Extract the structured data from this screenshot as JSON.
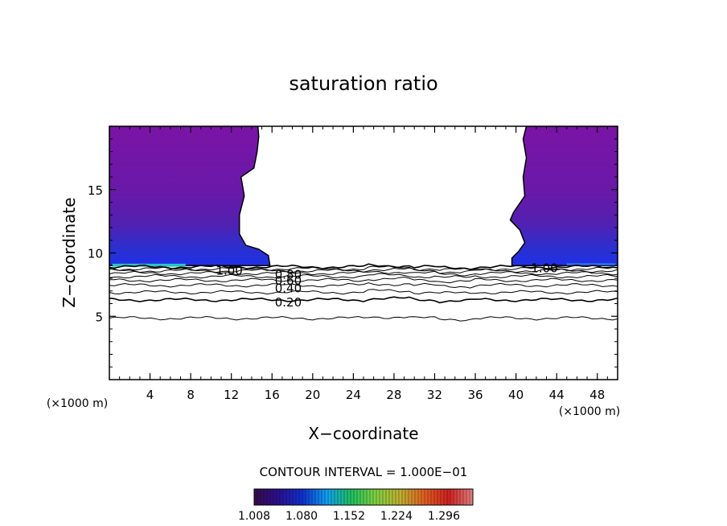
{
  "chart_data": {
    "type": "heatmap",
    "title": "saturation ratio",
    "xlabel": "X−coordinate",
    "ylabel": "Z−coordinate",
    "x_unit": "(×1000 m)",
    "y_unit": "(×1000 m)",
    "xlim": [
      0,
      50
    ],
    "ylim": [
      0,
      20
    ],
    "x_ticks": [
      4,
      8,
      12,
      16,
      20,
      24,
      28,
      32,
      36,
      40,
      44,
      48
    ],
    "y_ticks": [
      5,
      10,
      15
    ],
    "x_tick_labels": [
      "4",
      "8",
      "12",
      "16",
      "20",
      "24",
      "28",
      "32",
      "36",
      "40",
      "44",
      "48"
    ],
    "y_tick_labels": [
      "5",
      "10",
      "15"
    ],
    "contour_interval_text": "CONTOUR INTERVAL = 1.000E−01",
    "colorbar": {
      "min": 1.008,
      "max": 1.34,
      "tick_labels": [
        "1.008",
        "1.080",
        "1.152",
        "1.224",
        "1.296"
      ],
      "colors": [
        "#3a0a4a",
        "#2a1090",
        "#1030d0",
        "#10a0f0",
        "#20c060",
        "#80d040",
        "#c0b030",
        "#e06020",
        "#d02020",
        "#e08080"
      ]
    },
    "contour_levels": [
      {
        "value": 0.1,
        "z": 4.85
      },
      {
        "value": 0.2,
        "z": 6.3
      },
      {
        "value": 0.3,
        "z": 6.9
      },
      {
        "value": 0.4,
        "z": 7.45
      },
      {
        "value": 0.5,
        "z": 7.85
      },
      {
        "value": 0.6,
        "z": 8.15
      },
      {
        "value": 0.7,
        "z": 8.4
      },
      {
        "value": 0.8,
        "z": 8.6
      },
      {
        "value": 0.9,
        "z": 8.75
      },
      {
        "value": 1.0,
        "z": 8.9
      }
    ],
    "contour_labels": [
      {
        "text": "0.20",
        "x": 17.6,
        "z": 6.1
      },
      {
        "text": "0.40",
        "x": 17.6,
        "z": 7.2
      },
      {
        "text": "0.60",
        "x": 17.6,
        "z": 7.8
      },
      {
        "text": "0.80",
        "x": 17.6,
        "z": 8.3
      },
      {
        "text": "1.00",
        "x": 11.8,
        "z": 8.6
      },
      {
        "text": "1.00",
        "x": 42.8,
        "z": 8.8
      }
    ],
    "supersaturated_regions": [
      {
        "name": "left",
        "x_range": [
          0,
          15.8
        ],
        "z_range": [
          9.0,
          20
        ]
      },
      {
        "name": "right",
        "x_range": [
          39.6,
          50
        ],
        "z_range": [
          9.0,
          20
        ]
      }
    ]
  }
}
